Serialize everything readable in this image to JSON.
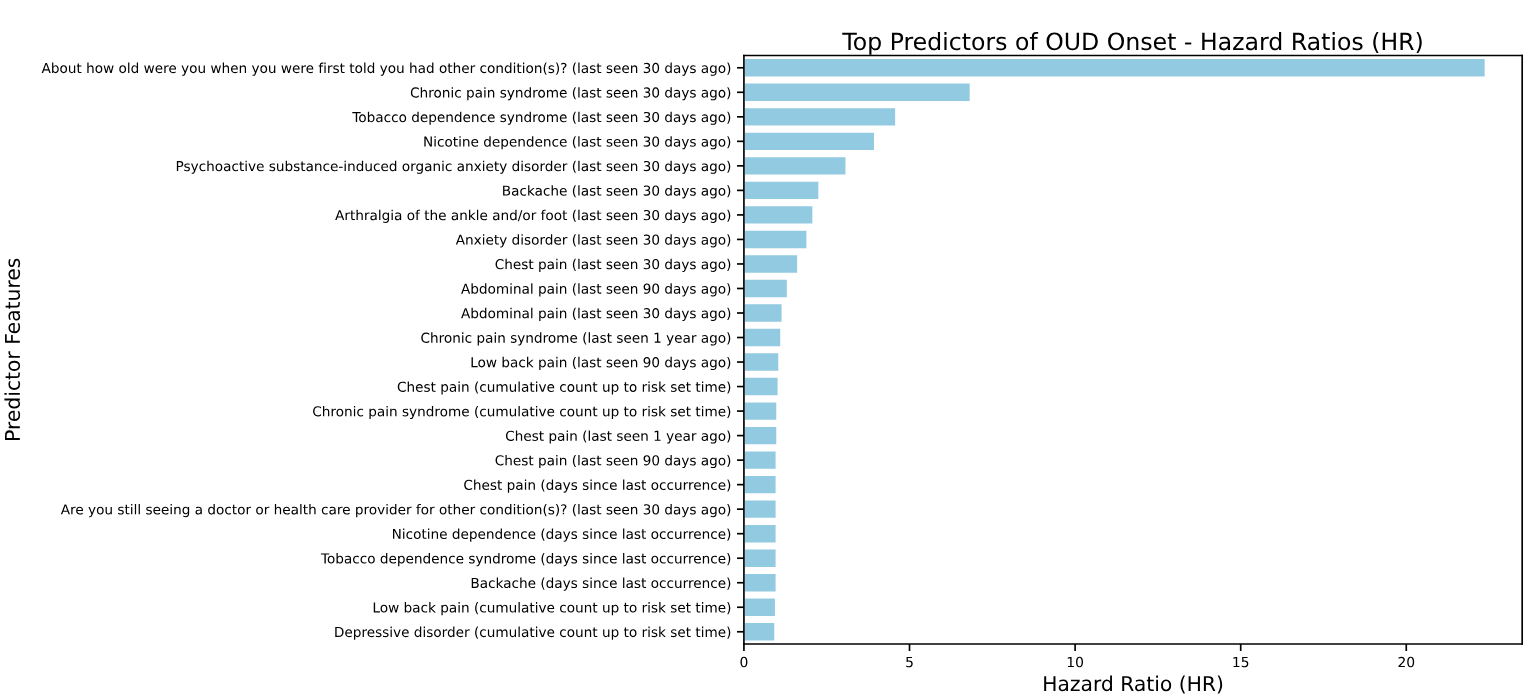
{
  "chart_data": {
    "type": "bar",
    "orientation": "horizontal",
    "title": "Top Predictors of OUD Onset - Hazard Ratios (HR)",
    "xlabel": "Hazard Ratio (HR)",
    "ylabel": "Predictor Features",
    "categories": [
      "About how old were you when you were first told you had other condition(s)? (last seen 30 days ago)",
      "Chronic pain syndrome (last seen 30 days ago)",
      "Tobacco dependence syndrome (last seen 30 days ago)",
      "Nicotine dependence (last seen 30 days ago)",
      "Psychoactive substance-induced organic anxiety disorder (last seen 30 days ago)",
      "Backache (last seen 30 days ago)",
      "Arthralgia of the ankle and/or foot (last seen 30 days ago)",
      "Anxiety disorder (last seen 30 days ago)",
      "Chest pain (last seen 30 days ago)",
      "Abdominal pain (last seen 90 days ago)",
      "Abdominal pain (last seen 30 days ago)",
      "Chronic pain syndrome (last seen 1 year ago)",
      "Low back pain (last seen 90 days ago)",
      "Chest pain (cumulative count up to risk set time)",
      "Chronic pain syndrome (cumulative count up to risk set time)",
      "Chest pain (last seen 1 year ago)",
      "Chest pain (last seen 90 days ago)",
      "Chest pain (days since last occurrence)",
      "Are you still seeing a doctor or health care provider for other condition(s)? (last seen 30 days ago)",
      "Nicotine dependence (days since last occurrence)",
      "Tobacco dependence syndrome (days since last occurrence)",
      "Backache (days since last occurrence)",
      "Low back pain (cumulative count up to risk set time)",
      "Depressive disorder (cumulative count up to risk set time)"
    ],
    "values": [
      22.4,
      6.85,
      4.6,
      3.96,
      3.1,
      2.28,
      2.1,
      1.92,
      1.64,
      1.33,
      1.17,
      1.13,
      1.07,
      1.05,
      1.01,
      1.01,
      0.99,
      0.99,
      0.99,
      0.99,
      0.99,
      0.99,
      0.97,
      0.95
    ],
    "color": "#92cae1",
    "xlim": [
      0,
      23.5
    ],
    "xticks": [
      0,
      5,
      10,
      15,
      20
    ],
    "grid": false,
    "legend": false
  }
}
